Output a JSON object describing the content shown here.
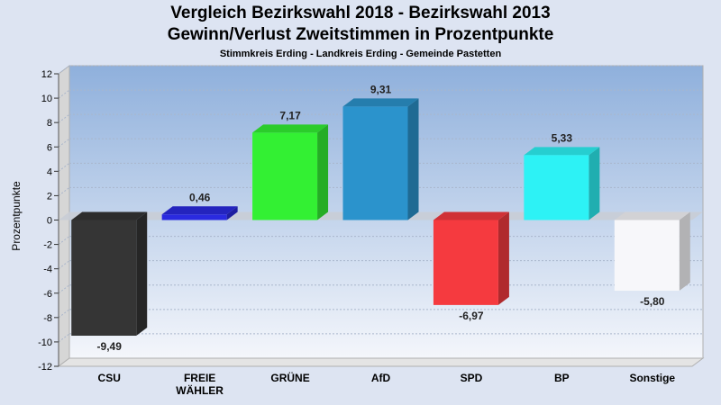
{
  "chart_data": {
    "type": "bar",
    "title": "Vergleich Bezirkswahl 2018 - Bezirkswahl 2013",
    "subtitle": "Gewinn/Verlust Zweitstimmen in Prozentpunkte",
    "caption": "Stimmkreis Erding - Landkreis Erding - Gemeinde Pastetten",
    "ylabel": "Prozentpunkte",
    "xlabel": "",
    "ylim": [
      -12,
      12
    ],
    "yticks": [
      12,
      10,
      8,
      6,
      4,
      2,
      0,
      -2,
      -4,
      -6,
      -8,
      -10,
      -12
    ],
    "grid": true,
    "categories": [
      "CSU",
      "FREIE\nWÄHLER",
      "GRÜNE",
      "AfD",
      "SPD",
      "BP",
      "Sonstige"
    ],
    "values": [
      -9.49,
      0.46,
      7.17,
      9.31,
      -6.97,
      5.33,
      -5.8
    ],
    "value_labels": [
      "-9,49",
      "0,46",
      "7,17",
      "9,31",
      "-6,97",
      "5,33",
      "-5,80"
    ],
    "colors": [
      "#353535",
      "#2a2ae0",
      "#33f033",
      "#2b93cc",
      "#f53a3f",
      "#2df2f5",
      "#f7f7fa"
    ]
  }
}
